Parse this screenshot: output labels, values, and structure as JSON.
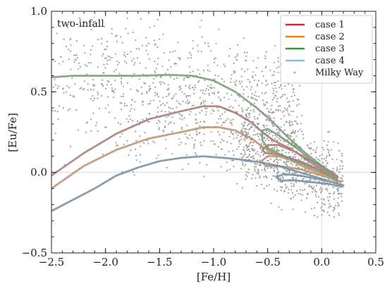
{
  "chart_data": {
    "type": "line",
    "annotation": "two-infall",
    "xlabel": "[Fe/H]",
    "ylabel": "[Eu/Fe]",
    "xlim": [
      -2.5,
      0.5
    ],
    "ylim": [
      -0.5,
      1.0
    ],
    "x_ticks": [
      "−2.5",
      "−2.0",
      "−1.5",
      "−1.0",
      "−0.5",
      "0.0",
      "0.5"
    ],
    "y_ticks": [
      "−0.5",
      "0.0",
      "0.5",
      "1.0"
    ],
    "reference_lines": {
      "x": 0.0,
      "y": 0.0,
      "color": "#dcdcdc"
    },
    "legend_position": "top-right",
    "grid": false,
    "series": [
      {
        "name": "case 1",
        "color": "#d62728",
        "points": [
          [
            -2.5,
            -0.02
          ],
          [
            -2.2,
            0.12
          ],
          [
            -1.9,
            0.24
          ],
          [
            -1.6,
            0.33
          ],
          [
            -1.3,
            0.38
          ],
          [
            -1.1,
            0.41
          ],
          [
            -0.95,
            0.41
          ],
          [
            -0.8,
            0.37
          ],
          [
            -0.65,
            0.31
          ],
          [
            -0.55,
            0.25
          ],
          [
            -0.45,
            0.2
          ],
          [
            -0.3,
            0.15
          ],
          [
            -0.15,
            0.09
          ],
          [
            0.0,
            0.04
          ],
          [
            0.12,
            -0.01
          ],
          [
            0.15,
            -0.03
          ],
          [
            0.05,
            0.0
          ],
          [
            -0.1,
            0.06
          ],
          [
            -0.25,
            0.13
          ],
          [
            -0.4,
            0.17
          ],
          [
            -0.5,
            0.17
          ],
          [
            -0.55,
            0.14
          ],
          [
            -0.52,
            0.12
          ],
          [
            -0.4,
            0.11
          ],
          [
            -0.2,
            0.07
          ],
          [
            0.0,
            0.01
          ],
          [
            0.15,
            -0.04
          ]
        ]
      },
      {
        "name": "case 2",
        "color": "#ff7f0e",
        "points": [
          [
            -2.5,
            -0.1
          ],
          [
            -2.2,
            0.04
          ],
          [
            -1.9,
            0.14
          ],
          [
            -1.6,
            0.21
          ],
          [
            -1.3,
            0.25
          ],
          [
            -1.1,
            0.28
          ],
          [
            -0.95,
            0.28
          ],
          [
            -0.8,
            0.26
          ],
          [
            -0.65,
            0.21
          ],
          [
            -0.55,
            0.16
          ],
          [
            -0.45,
            0.12
          ],
          [
            -0.3,
            0.08
          ],
          [
            -0.15,
            0.03
          ],
          [
            0.0,
            -0.01
          ],
          [
            0.12,
            -0.05
          ],
          [
            0.18,
            -0.06
          ],
          [
            0.05,
            -0.03
          ],
          [
            -0.1,
            0.02
          ],
          [
            -0.25,
            0.07
          ],
          [
            -0.4,
            0.1
          ],
          [
            -0.5,
            0.1
          ],
          [
            -0.56,
            0.07
          ],
          [
            -0.52,
            0.04
          ],
          [
            -0.4,
            0.04
          ],
          [
            -0.2,
            0.02
          ],
          [
            0.0,
            -0.02
          ],
          [
            0.15,
            -0.05
          ]
        ]
      },
      {
        "name": "case 3",
        "color": "#2ca02c",
        "points": [
          [
            -2.5,
            0.59
          ],
          [
            -2.3,
            0.6
          ],
          [
            -2.0,
            0.6
          ],
          [
            -1.7,
            0.6
          ],
          [
            -1.4,
            0.605
          ],
          [
            -1.2,
            0.6
          ],
          [
            -1.0,
            0.57
          ],
          [
            -0.8,
            0.5
          ],
          [
            -0.6,
            0.4
          ],
          [
            -0.45,
            0.31
          ],
          [
            -0.3,
            0.21
          ],
          [
            -0.15,
            0.12
          ],
          [
            0.0,
            0.04
          ],
          [
            0.12,
            -0.02
          ],
          [
            0.05,
            0.01
          ],
          [
            -0.1,
            0.08
          ],
          [
            -0.25,
            0.16
          ],
          [
            -0.4,
            0.23
          ],
          [
            -0.5,
            0.27
          ],
          [
            -0.55,
            0.26
          ],
          [
            -0.55,
            0.2
          ],
          [
            -0.5,
            0.15
          ],
          [
            -0.35,
            0.1
          ],
          [
            -0.15,
            0.05
          ],
          [
            0.0,
            0.0
          ],
          [
            0.15,
            -0.05
          ]
        ]
      },
      {
        "name": "case 4",
        "color": "#1f77b4",
        "points": [
          [
            -2.5,
            -0.24
          ],
          [
            -2.3,
            -0.17
          ],
          [
            -2.1,
            -0.1
          ],
          [
            -1.9,
            -0.02
          ],
          [
            -1.7,
            0.03
          ],
          [
            -1.5,
            0.07
          ],
          [
            -1.3,
            0.09
          ],
          [
            -1.1,
            0.1
          ],
          [
            -0.9,
            0.09
          ],
          [
            -0.75,
            0.08
          ],
          [
            -0.55,
            0.06
          ],
          [
            -0.4,
            0.04
          ],
          [
            -0.25,
            0.01
          ],
          [
            -0.1,
            -0.02
          ],
          [
            0.05,
            -0.05
          ],
          [
            0.2,
            -0.08
          ],
          [
            0.1,
            -0.06
          ],
          [
            -0.05,
            -0.04
          ],
          [
            -0.2,
            -0.02
          ],
          [
            -0.35,
            -0.01
          ],
          [
            -0.42,
            -0.03
          ],
          [
            -0.38,
            -0.05
          ],
          [
            -0.25,
            -0.05
          ],
          [
            -0.1,
            -0.06
          ],
          [
            0.05,
            -0.07
          ],
          [
            0.2,
            -0.09
          ]
        ]
      },
      {
        "name": "Milky Way",
        "color": "#a0a0a0",
        "style": "scatter",
        "n_points": 1700
      }
    ]
  }
}
